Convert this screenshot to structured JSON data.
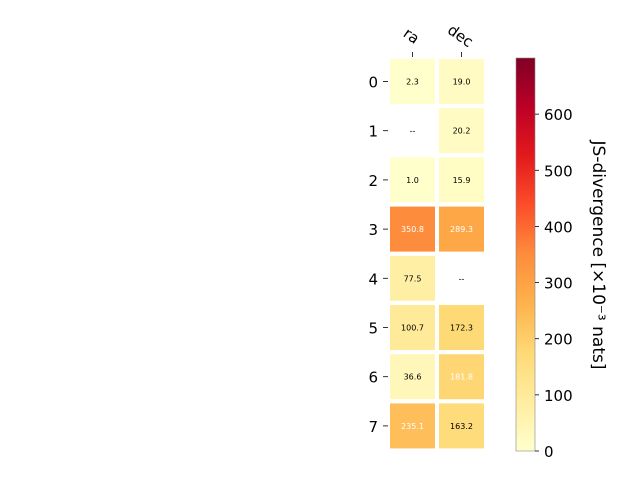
{
  "chart_data": {
    "type": "heatmap",
    "columns": [
      "ra",
      "dec"
    ],
    "rows": [
      "0",
      "1",
      "2",
      "3",
      "4",
      "5",
      "6",
      "7"
    ],
    "values": [
      [
        2.3,
        19.0
      ],
      [
        null,
        20.2
      ],
      [
        1.0,
        15.9
      ],
      [
        350.8,
        289.3
      ],
      [
        77.5,
        null
      ],
      [
        100.7,
        172.3
      ],
      [
        36.6,
        181.8
      ],
      [
        235.1,
        163.2
      ]
    ],
    "cell_labels": [
      [
        "2.3",
        "19.0"
      ],
      [
        "--",
        "20.2"
      ],
      [
        "1.0",
        "15.9"
      ],
      [
        "350.8",
        "289.3"
      ],
      [
        "77.5",
        "--"
      ],
      [
        "100.7",
        "172.3"
      ],
      [
        "36.6",
        "181.8"
      ],
      [
        "235.1",
        "163.2"
      ]
    ],
    "colorbar": {
      "label": "JS-divergence [×10⁻³ nats]",
      "vmin": 0,
      "vmax": 700,
      "ticks": [
        "0",
        "100",
        "200",
        "300",
        "400",
        "500",
        "600"
      ],
      "colormap": "YlOrRd"
    },
    "colormap_colors": [
      "#ffffcc",
      "#ffeda0",
      "#fed976",
      "#feb24c",
      "#fd8d3c",
      "#fc4e2a",
      "#e31a1c",
      "#bd0026",
      "#800026"
    ]
  }
}
